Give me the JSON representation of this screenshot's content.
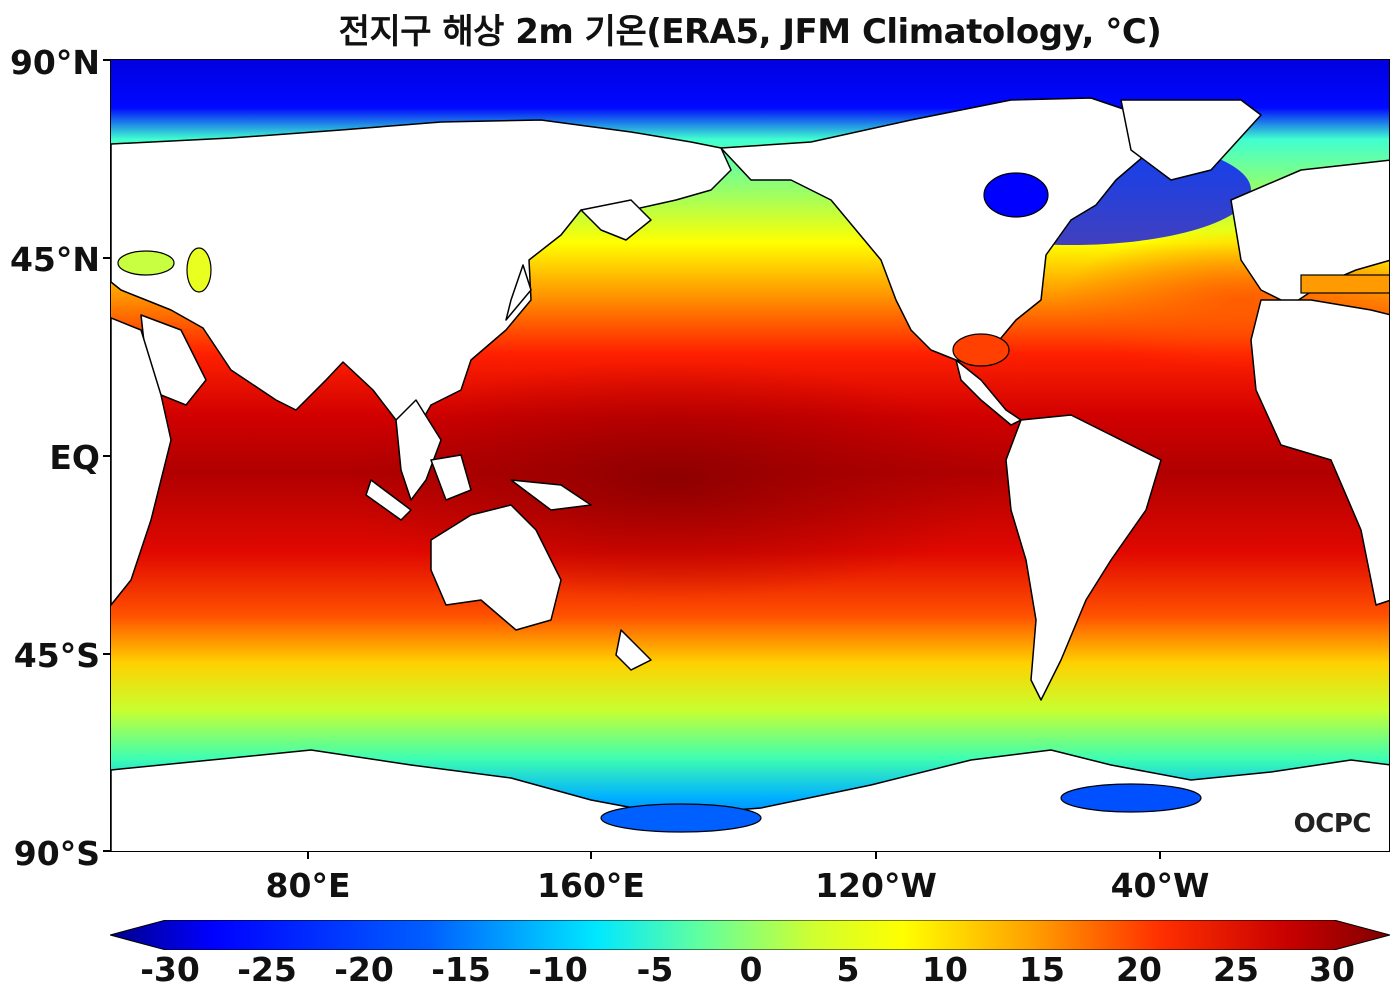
{
  "title": "전지구 해상 2m 기온(ERA5, JFM Climatology, °C)",
  "logo": "OCPC",
  "y_axis_labels": [
    "90°N",
    "45°N",
    "EQ",
    "45°S",
    "90°S"
  ],
  "x_axis_labels": [
    "80°E",
    "160°E",
    "120°W",
    "40°W"
  ],
  "colorbar": {
    "labels": [
      "-30",
      "-25",
      "-20",
      "-15",
      "-10",
      "-5",
      "0",
      "5",
      "10",
      "15",
      "20",
      "25",
      "30"
    ],
    "colors": [
      "#00008b",
      "#0000ff",
      "#0060ff",
      "#00c8ff",
      "#40ffd0",
      "#90ff70",
      "#e8ff20",
      "#ffff00",
      "#ffb000",
      "#ff6000",
      "#ff1a00",
      "#c00000",
      "#800000"
    ]
  },
  "map_data": {
    "variable": "2m air temperature over ocean",
    "units": "°C",
    "season": "JFM",
    "range": [
      -30,
      30
    ],
    "lat_range": [
      -90,
      90
    ],
    "lon_range": [
      35,
      395
    ]
  }
}
